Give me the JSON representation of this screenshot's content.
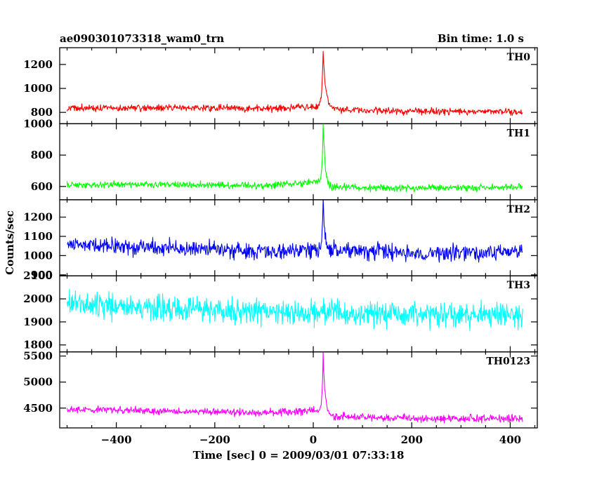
{
  "header": {
    "title": "ae090301073318_wam0_trn",
    "bin_time": "Bin time: 1.0 s"
  },
  "chart_data": {
    "type": "line",
    "title": "ae090301073318_wam0_trn",
    "subtitle": "Bin time: 1.0 s",
    "xlabel": "Time [sec] 0 = 2009/03/01 07:33:18",
    "ylabel": "Counts/sec",
    "xlim": [
      -515,
      455
    ],
    "x_ticks": [
      -400,
      -200,
      0,
      200,
      400
    ],
    "x_tick_labels": [
      "−400",
      "−200",
      "0",
      "200",
      "400"
    ],
    "x_range": [
      -500,
      425
    ],
    "bin_seconds": 1.0,
    "legend": "none",
    "grid": false,
    "panels": [
      {
        "name": "TH0",
        "color": "#ff0000",
        "ylim": [
          705,
          1340
        ],
        "y_ticks": [
          800,
          1000,
          1200
        ],
        "y_tick_labels": [
          "800",
          "1000",
          "1200"
        ],
        "baseline": [
          [
            -500,
            835
          ],
          [
            -300,
            840
          ],
          [
            -100,
            830
          ],
          [
            10,
            850
          ],
          [
            30,
            825
          ],
          [
            200,
            810
          ],
          [
            425,
            805
          ]
        ],
        "noise_amplitude": 30,
        "peak": {
          "x": 20,
          "y": 1330,
          "decay_seconds": 5
        }
      },
      {
        "name": "TH1",
        "color": "#00ff00",
        "ylim": [
          515,
          1000
        ],
        "y_ticks": [
          600,
          800,
          1000
        ],
        "y_tick_labels": [
          "600",
          "800",
          "1000"
        ],
        "baseline": [
          [
            -500,
            610
          ],
          [
            -300,
            615
          ],
          [
            -100,
            605
          ],
          [
            10,
            630
          ],
          [
            30,
            595
          ],
          [
            200,
            590
          ],
          [
            425,
            595
          ]
        ],
        "noise_amplitude": 22,
        "peak": {
          "x": 20,
          "y": 1000,
          "decay_seconds": 4
        }
      },
      {
        "name": "TH2",
        "color": "#0000ff",
        "ylim": [
          895,
          1290
        ],
        "y_ticks": [
          900,
          1000,
          1100,
          1200
        ],
        "y_tick_labels": [
          "900",
          "1000",
          "1100",
          "1200"
        ],
        "baseline": [
          [
            -500,
            1055
          ],
          [
            -300,
            1040
          ],
          [
            -100,
            1025
          ],
          [
            10,
            1030
          ],
          [
            200,
            1015
          ],
          [
            425,
            1020
          ]
        ],
        "noise_amplitude": 45,
        "peak": {
          "x": 20,
          "y": 1280,
          "decay_seconds": 3
        }
      },
      {
        "name": "TH3",
        "color": "#00ffff",
        "ylim": [
          1770,
          2100
        ],
        "y_ticks": [
          1800,
          1900,
          2000,
          2100
        ],
        "y_tick_labels": [
          "1800",
          "1900",
          "2000",
          "2100"
        ],
        "baseline": [
          [
            -500,
            1975
          ],
          [
            -300,
            1960
          ],
          [
            -100,
            1945
          ],
          [
            100,
            1935
          ],
          [
            425,
            1925
          ]
        ],
        "noise_amplitude": 55,
        "peak": null
      },
      {
        "name": "TH0123",
        "color": "#ff00ff",
        "ylim": [
          4120,
          5580
        ],
        "y_ticks": [
          4500,
          5000,
          5500
        ],
        "y_tick_labels": [
          "4500",
          "5000",
          "5500"
        ],
        "baseline": [
          [
            -500,
            4480
          ],
          [
            -300,
            4440
          ],
          [
            -100,
            4420
          ],
          [
            10,
            4450
          ],
          [
            30,
            4340
          ],
          [
            200,
            4300
          ],
          [
            425,
            4290
          ]
        ],
        "noise_amplitude": 75,
        "peak": {
          "x": 20,
          "y": 5560,
          "decay_seconds": 4
        }
      }
    ]
  }
}
